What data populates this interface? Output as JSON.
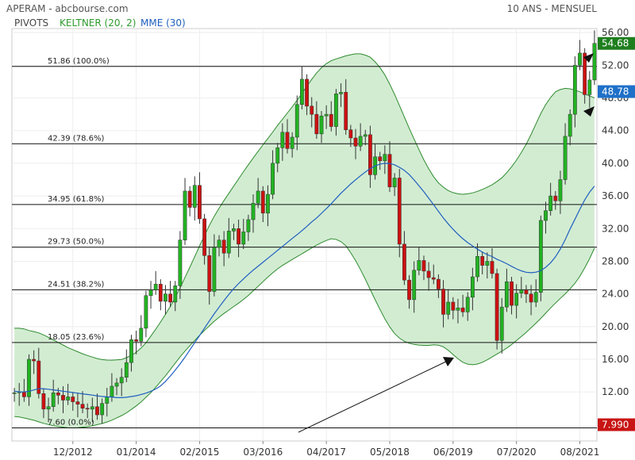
{
  "header": {
    "title": "APERAM - abcbourse.com",
    "period": "10 ANS - MENSUEL"
  },
  "legend": {
    "pivots": "PIVOTS",
    "keltner": "KELTNER (20, 2)",
    "mme": "MME (30)"
  },
  "colors": {
    "up": "#22b322",
    "down": "#cc1111",
    "band_fill": "#d2ecd2",
    "band_line": "#2e8b2e",
    "mme_line": "#1f5fbf",
    "last_badge": "#1e7e1e",
    "mme_badge": "#1e70c8",
    "low_badge": "#c81414"
  },
  "chart_data": {
    "type": "candlestick",
    "title": "APERAM - abcbourse.com",
    "period": "10 ANS - MENSUEL",
    "ylim": [
      6,
      56.5
    ],
    "yticks": [
      "56.00",
      "52.00",
      "48.00",
      "44.00",
      "40.00",
      "36.00",
      "32.00",
      "28.00",
      "24.00",
      "20.00",
      "16.00",
      "12.00"
    ],
    "xtick_labels": [
      "12/2012",
      "01/2014",
      "02/2015",
      "03/2016",
      "04/2017",
      "05/2018",
      "06/2019",
      "07/2020",
      "08/2021"
    ],
    "xtick_index": [
      12,
      25,
      38,
      51,
      64,
      77,
      90,
      103,
      116
    ],
    "fib_levels": [
      {
        "label": "51.86",
        "pct": "(100.0%)",
        "value": 51.86
      },
      {
        "label": "42.39",
        "pct": "(78.6%)",
        "value": 42.39
      },
      {
        "label": "34.95",
        "pct": "(61.8%)",
        "value": 34.95
      },
      {
        "label": "29.73",
        "pct": "(50.0%)",
        "value": 29.73
      },
      {
        "label": "24.51",
        "pct": "(38.2%)",
        "value": 24.51
      },
      {
        "label": "18.05",
        "pct": "(23.6%)",
        "value": 18.05
      },
      {
        "label": "7.60",
        "pct": "(0.0%)",
        "value": 7.6
      }
    ],
    "badges": {
      "last": "54.68",
      "mme": "48.78",
      "low": "7.990"
    },
    "closes": [
      11.9,
      12.0,
      11.4,
      16.0,
      15.8,
      11.8,
      9.9,
      10.2,
      11.9,
      11.6,
      11.0,
      11.4,
      10.8,
      10.5,
      10.0,
      9.9,
      10.2,
      9.2,
      10.6,
      11.4,
      12.7,
      13.1,
      13.8,
      15.6,
      18.4,
      18.2,
      19.8,
      23.8,
      24.5,
      25.2,
      23.1,
      24.0,
      23.0,
      25.0,
      30.6,
      36.6,
      34.6,
      37.3,
      33.2,
      28.7,
      24.3,
      29.7,
      30.6,
      29.0,
      31.7,
      32.0,
      30.1,
      31.6,
      33.1,
      35.1,
      36.6,
      33.9,
      36.2,
      40.0,
      41.9,
      43.8,
      41.8,
      43.2,
      47.2,
      50.3,
      47.0,
      46.0,
      43.6,
      45.8,
      46.0,
      44.5,
      48.5,
      48.7,
      44.1,
      43.1,
      42.1,
      43.3,
      43.5,
      38.6,
      40.8,
      40.3,
      41.1,
      37.1,
      38.2,
      30.1,
      25.7,
      23.3,
      26.9,
      28.1,
      26.8,
      26.0,
      25.8,
      24.6,
      21.5,
      23.0,
      22.0,
      22.3,
      21.8,
      23.6,
      26.1,
      28.6,
      27.5,
      28.0,
      26.5,
      18.3,
      22.4,
      25.5,
      22.6,
      24.1,
      24.5,
      24.0,
      23.0,
      24.2,
      33.0,
      34.2,
      36.0,
      35.4,
      38.0,
      43.3,
      46.0,
      52.0,
      53.5,
      48.4,
      50.2,
      54.68
    ],
    "keltner_mid": [
      12.2,
      12.3,
      12.4,
      12.4,
      12.4,
      12.4,
      12.3,
      12.1,
      12.0,
      11.8,
      11.5,
      11.3,
      11.1,
      11.0,
      11.0,
      11.1,
      11.2,
      11.5,
      11.9,
      12.5,
      13.3,
      14.2,
      15.2,
      16.3,
      17.5,
      18.7,
      20.0,
      21.2,
      22.5,
      23.8,
      25.0,
      26.2,
      27.3,
      28.3,
      29.3,
      30.2,
      30.8,
      31.3,
      31.7,
      32.1,
      32.5,
      33.0,
      33.6,
      34.3,
      35.1,
      36.0,
      37.0,
      38.1,
      39.0,
      39.8,
      40.4,
      40.8,
      41.2,
      41.5,
      41.7,
      41.8,
      41.8,
      41.6,
      41.2,
      40.5,
      39.5,
      38.4,
      37.2,
      36.0,
      34.9,
      33.8,
      32.8,
      31.9,
      31.0,
      30.2,
      29.4,
      28.7,
      28.0,
      27.3,
      26.7,
      26.1,
      25.6,
      25.3,
      25.1,
      25.0,
      25.0,
      25.1,
      25.3,
      25.6,
      26.1,
      26.8,
      27.8,
      29.1,
      30.7,
      32.5,
      34.5,
      36.6,
      38.6,
      40.5,
      42.2,
      43.6,
      44.7,
      45.5
    ],
    "keltner_upper": [
      19.8,
      19.8,
      19.5,
      19.3,
      18.9,
      18.4,
      17.9,
      17.4,
      17.0,
      16.6,
      16.3,
      16.0,
      15.9,
      15.9,
      16.0,
      16.4,
      17.0,
      18.0,
      19.3,
      20.7,
      22.2,
      23.9,
      25.9,
      27.9,
      30.0,
      32.0,
      33.8,
      35.3,
      36.7,
      38.1,
      39.5,
      40.8,
      42.1,
      43.3,
      44.6,
      45.8,
      47.0,
      48.3,
      49.7,
      51.0,
      52.0,
      52.6,
      52.9,
      53.2,
      53.4,
      53.4,
      53.0,
      52.1,
      50.7,
      48.8,
      46.6,
      44.4,
      42.3,
      40.3,
      38.6,
      37.4,
      36.7,
      36.3,
      36.2,
      36.3,
      36.6,
      37.0,
      37.5,
      38.2,
      39.2,
      40.5,
      42.0,
      43.9,
      46.0,
      47.7,
      48.8,
      49.2,
      49.1,
      48.8,
      48.4,
      48.0
    ],
    "keltner_lower": [
      9.0,
      8.9,
      8.7,
      8.5,
      8.2,
      8.0,
      7.8,
      7.7,
      7.6,
      7.6,
      7.7,
      7.8,
      8.0,
      8.2,
      8.5,
      8.9,
      9.3,
      9.9,
      10.5,
      11.3,
      12.1,
      13.1,
      14.1,
      15.2,
      16.3,
      17.3,
      18.2,
      19.1,
      19.9,
      20.7,
      21.4,
      22.0,
      22.6,
      23.2,
      23.9,
      24.7,
      25.5,
      26.3,
      27.0,
      27.6,
      28.1,
      28.6,
      29.1,
      29.6,
      30.1,
      30.5,
      30.8,
      30.6,
      29.9,
      28.7,
      27.2,
      25.5,
      23.7,
      22.0,
      20.4,
      19.2,
      18.4,
      18.0,
      17.8,
      17.7,
      17.7,
      17.8,
      17.6,
      17.0,
      16.2,
      15.6,
      15.3,
      15.4,
      15.7,
      16.2,
      16.7,
      17.2,
      17.8,
      18.5,
      19.2,
      20.0,
      20.8,
      21.7,
      22.6,
      23.4,
      24.2,
      25.1,
      26.3,
      27.8,
      29.6
    ],
    "mme": [
      12.1,
      12.0,
      12.0,
      12.2,
      12.4,
      12.4,
      12.3,
      12.2,
      12.1,
      12.0,
      11.9,
      11.8,
      11.7,
      11.6,
      11.5,
      11.4,
      11.4,
      11.3,
      11.3,
      11.4,
      11.5,
      11.7,
      11.9,
      12.2,
      12.6,
      13.3,
      14.1,
      15.0,
      16.0,
      17.1,
      18.2,
      19.3,
      20.4,
      21.5,
      22.5,
      23.5,
      24.4,
      25.2,
      25.9,
      26.6,
      27.2,
      27.8,
      28.4,
      29.0,
      29.6,
      30.2,
      30.8,
      31.4,
      32.0,
      32.7,
      33.3,
      34.0,
      34.7,
      35.5,
      36.3,
      37.0,
      37.7,
      38.3,
      38.9,
      39.4,
      39.8,
      40.0,
      40.0,
      39.8,
      39.4,
      38.9,
      38.1,
      37.2,
      36.3,
      35.3,
      34.3,
      33.3,
      32.4,
      31.6,
      30.9,
      30.3,
      29.8,
      29.3,
      28.9,
      28.6,
      28.2,
      27.9,
      27.5,
      27.1,
      26.8,
      26.6,
      26.6,
      26.8,
      27.3,
      28.0,
      29.0,
      30.4,
      32.0,
      33.5,
      35.0,
      36.3,
      37.2
    ]
  }
}
